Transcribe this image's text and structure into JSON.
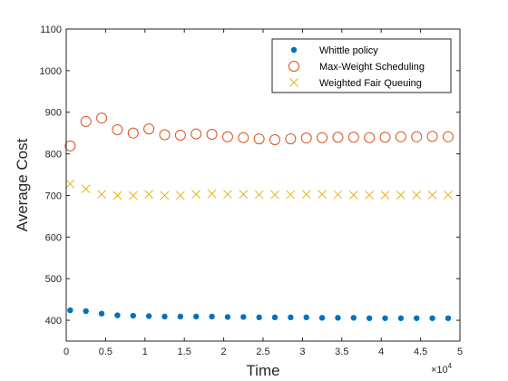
{
  "chart_data": {
    "type": "scatter",
    "title": "",
    "xlabel": "Time",
    "ylabel": "Average Cost",
    "x_multiplier_label": "×10",
    "x_multiplier_exp": "4",
    "xlim": [
      0,
      50000
    ],
    "ylim": [
      350,
      1100
    ],
    "xticks": [
      0,
      5000,
      10000,
      15000,
      20000,
      25000,
      30000,
      35000,
      40000,
      45000,
      50000
    ],
    "xtick_labels": [
      "0",
      "0.5",
      "1",
      "1.5",
      "2",
      "2.5",
      "3",
      "3.5",
      "4",
      "4.5",
      "5"
    ],
    "yticks": [
      400,
      500,
      600,
      700,
      800,
      900,
      1000,
      1100
    ],
    "ytick_labels": [
      "400",
      "500",
      "600",
      "700",
      "800",
      "900",
      "1000",
      "1100"
    ],
    "grid": false,
    "legend_position": "top-right",
    "x": [
      500,
      2500,
      4500,
      6500,
      8500,
      10500,
      12500,
      14500,
      16500,
      18500,
      20500,
      22500,
      24500,
      26500,
      28500,
      30500,
      32500,
      34500,
      36500,
      38500,
      40500,
      42500,
      44500,
      46500,
      48500
    ],
    "series": [
      {
        "name": "Whittle policy",
        "marker": "dot",
        "color": "#0072BD",
        "values": [
          424,
          422,
          416,
          412,
          411,
          410,
          409,
          409,
          409,
          409,
          408,
          408,
          407,
          407,
          407,
          407,
          406,
          406,
          406,
          405,
          405,
          405,
          405,
          405,
          405
        ]
      },
      {
        "name": "Max-Weight Scheduling",
        "marker": "circle",
        "color": "#D95319",
        "values": [
          819,
          878,
          886,
          858,
          850,
          860,
          846,
          845,
          848,
          847,
          841,
          839,
          836,
          834,
          836,
          838,
          839,
          840,
          840,
          839,
          840,
          841,
          841,
          842,
          841
        ]
      },
      {
        "name": "Weighted Fair Queuing",
        "marker": "x",
        "color": "#EDB120",
        "values": [
          728,
          716,
          703,
          700,
          700,
          703,
          700,
          700,
          703,
          704,
          703,
          703,
          702,
          702,
          702,
          703,
          703,
          702,
          701,
          701,
          701,
          701,
          701,
          701,
          701
        ]
      }
    ]
  }
}
